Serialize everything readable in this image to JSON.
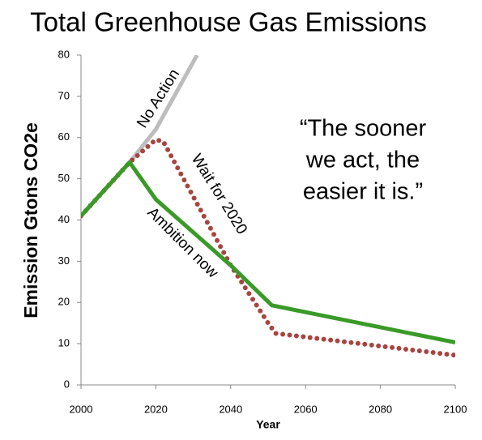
{
  "chart_data": {
    "type": "line",
    "title": "Total Greenhouse Gas Emissions",
    "y_label": "Emission Gtons CO2e",
    "x_label": "Year",
    "xlim": [
      2000,
      2100
    ],
    "xticks": [
      2000,
      2020,
      2040,
      2060,
      2080,
      2100
    ],
    "ylim": [
      0,
      80
    ],
    "yticks": [
      0,
      10,
      20,
      30,
      40,
      50,
      60,
      70,
      80
    ],
    "series": [
      {
        "name": "No Action",
        "color": "#bdbdbd",
        "dotted": false,
        "x": [
          2000,
          2005,
          2010,
          2013,
          2020,
          2031
        ],
        "values": [
          41,
          46,
          51,
          54,
          62,
          80
        ]
      },
      {
        "name": "Wait for 2020",
        "color": "#a8443f",
        "dotted": true,
        "x": [
          2000,
          2005,
          2010,
          2013,
          2020,
          2022,
          2040,
          2050,
          2052,
          2100
        ],
        "values": [
          41,
          46,
          51,
          54,
          59.5,
          59,
          29,
          15,
          12.5,
          7.2
        ]
      },
      {
        "name": "Ambition now",
        "color": "#3a9a28",
        "dotted": false,
        "x": [
          2000,
          2005,
          2010,
          2013,
          2020,
          2040,
          2051,
          2100
        ],
        "values": [
          41,
          46,
          51,
          54,
          45,
          29,
          19.3,
          10.3
        ]
      }
    ],
    "quote": [
      "“The sooner",
      "we act, the",
      "easier it is.”"
    ]
  }
}
